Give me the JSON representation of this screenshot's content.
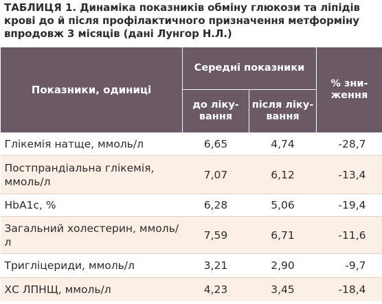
{
  "caption": {
    "lead": "ТАБЛИЦЯ 1.",
    "text": " Динаміка показників обміну глюкози та ліпідів крові до й після профілактичного призначення метформіну впродовж 3 місяців (дані Лунгор Н.Л.)"
  },
  "table": {
    "header": {
      "indicator": "Показники, одиниці",
      "average": "Середні показники",
      "before": "до ліку-вання",
      "after": "після ліку-вання",
      "reduction": "% зни-ження"
    },
    "rows": [
      {
        "name": "Глікемія натще, ммоль/л",
        "before": "6,65",
        "after": "4,74",
        "reduction": "-28,7"
      },
      {
        "name": "Постпрандіальна глікемія, ммоль/л",
        "before": "7,07",
        "after": "6,12",
        "reduction": "-13,4"
      },
      {
        "name": "HbA1c, %",
        "before": "6,28",
        "after": "5,06",
        "reduction": "-19,4"
      },
      {
        "name": "Загальний холестерин, ммоль/л",
        "before": "7,59",
        "after": "6,71",
        "reduction": "-11,6"
      },
      {
        "name": "Тригліцериди, ммоль/л",
        "before": "3,21",
        "after": "2,90",
        "reduction": "-9,7"
      },
      {
        "name": "ХС ЛПНЩ, ммоль/л",
        "before": "4,23",
        "after": "3,45",
        "reduction": "-18,4"
      }
    ]
  },
  "colors": {
    "header_bg": "#6b5a66",
    "header_text": "#ffffff",
    "stripe_bg": "#fcefe6"
  }
}
